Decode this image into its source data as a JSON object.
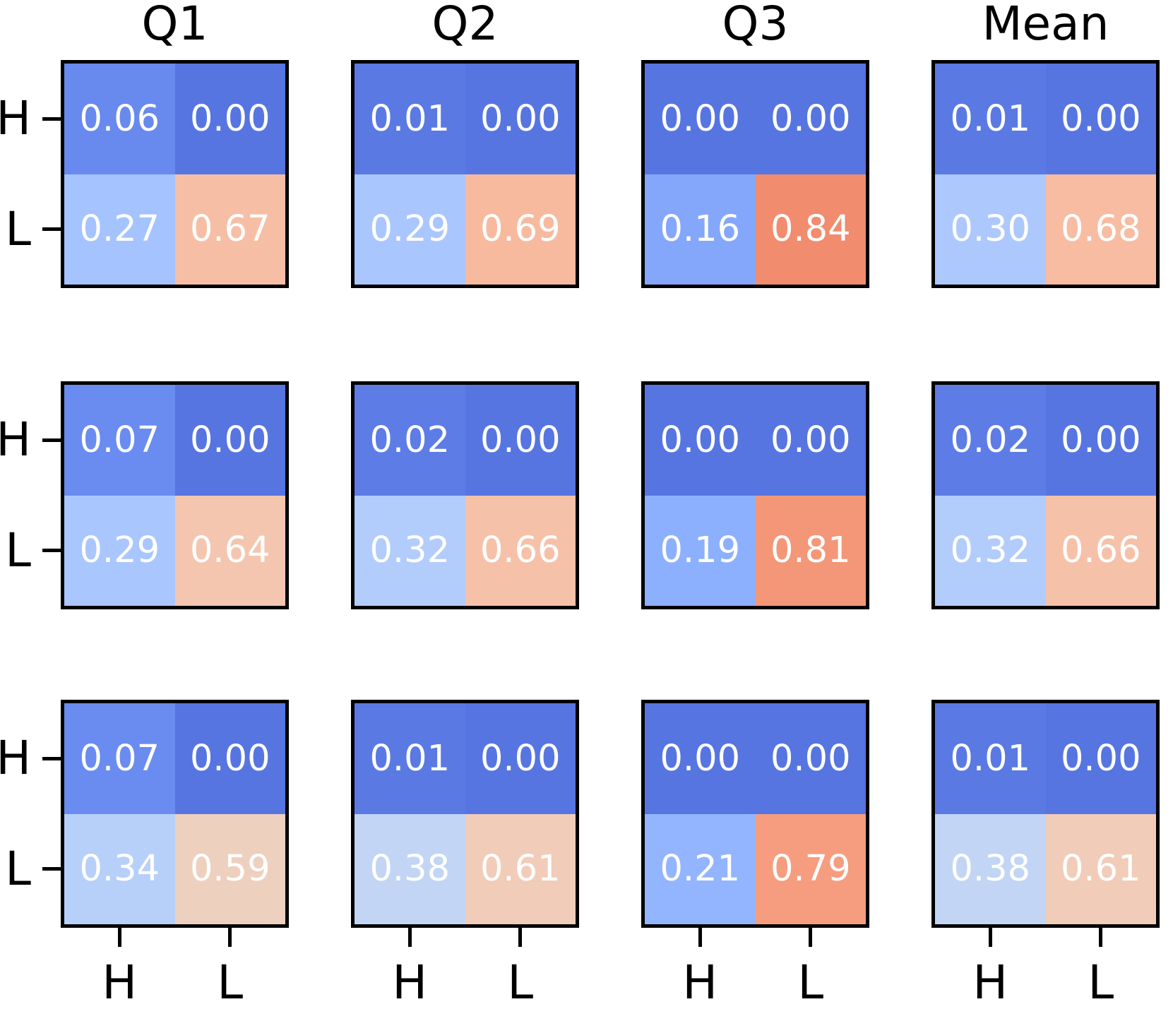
{
  "chart_data": {
    "type": "heatmap",
    "title": "",
    "grid": {
      "rows": 3,
      "cols": 4
    },
    "col_titles": [
      "Q1",
      "Q2",
      "Q3",
      "Mean"
    ],
    "y_tick_labels": [
      "H",
      "L"
    ],
    "x_tick_labels": [
      "H",
      "L"
    ],
    "legend": "none",
    "value_range": [
      0,
      1
    ],
    "matrices": [
      [
        [
          [
            "0.06",
            "0.00"
          ],
          [
            "0.27",
            "0.67"
          ]
        ],
        [
          [
            "0.01",
            "0.00"
          ],
          [
            "0.29",
            "0.69"
          ]
        ],
        [
          [
            "0.00",
            "0.00"
          ],
          [
            "0.16",
            "0.84"
          ]
        ],
        [
          [
            "0.01",
            "0.00"
          ],
          [
            "0.30",
            "0.68"
          ]
        ]
      ],
      [
        [
          [
            "0.07",
            "0.00"
          ],
          [
            "0.29",
            "0.64"
          ]
        ],
        [
          [
            "0.02",
            "0.00"
          ],
          [
            "0.32",
            "0.66"
          ]
        ],
        [
          [
            "0.00",
            "0.00"
          ],
          [
            "0.19",
            "0.81"
          ]
        ],
        [
          [
            "0.02",
            "0.00"
          ],
          [
            "0.32",
            "0.66"
          ]
        ]
      ],
      [
        [
          [
            "0.07",
            "0.00"
          ],
          [
            "0.34",
            "0.59"
          ]
        ],
        [
          [
            "0.01",
            "0.00"
          ],
          [
            "0.38",
            "0.61"
          ]
        ],
        [
          [
            "0.00",
            "0.00"
          ],
          [
            "0.21",
            "0.79"
          ]
        ],
        [
          [
            "0.01",
            "0.00"
          ],
          [
            "0.38",
            "0.61"
          ]
        ]
      ]
    ],
    "colormap": {
      "name": "coolwarm",
      "norm": {
        "offset": 0.094,
        "scale": 0.82
      },
      "anchors": [
        "#3b4cc0",
        "#445acc",
        "#4d68d7",
        "#5775e1",
        "#6282ea",
        "#6c8ef1",
        "#779af7",
        "#82a5fb",
        "#8db0fe",
        "#98b9ff",
        "#a3c2ff",
        "#aec9fd",
        "#b8d0f9",
        "#c2d5f4",
        "#ccd9ee",
        "#d5dbe6",
        "#dddddd",
        "#e5d8d1",
        "#ecd3c5",
        "#f1ccb9",
        "#f5c4ad",
        "#f7bba0",
        "#f7b194",
        "#f7a687",
        "#f49a7b",
        "#f18d6f",
        "#ec7f63",
        "#e57058",
        "#de604d",
        "#d55042",
        "#cb3e38",
        "#c0282f",
        "#b40426"
      ]
    },
    "colors": {
      "cell_text": "#ffffff",
      "axis_text": "#000000",
      "panel_border": "#000000",
      "background": "#ffffff"
    }
  }
}
